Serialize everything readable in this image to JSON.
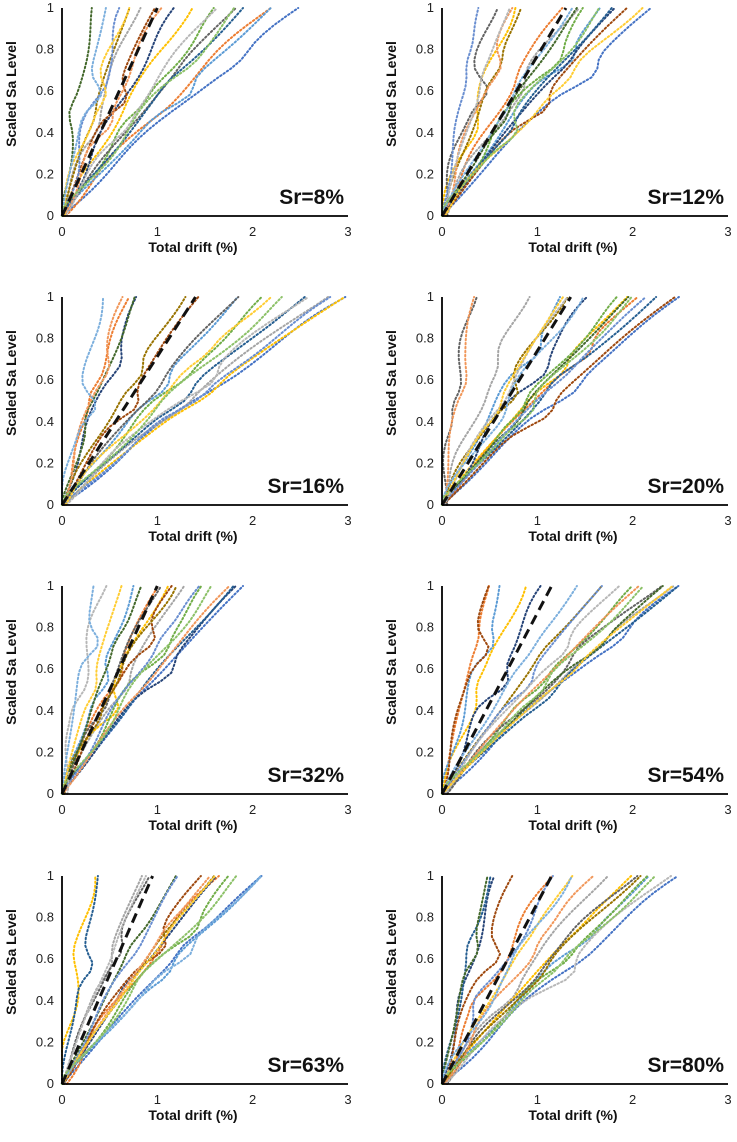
{
  "chart_data": [
    {
      "type": "line",
      "panel_label": "Sr=8%",
      "xlabel": "Total drift (%)",
      "ylabel": "Scaled Sa Level",
      "xlim": [
        0,
        3
      ],
      "ylim": [
        0,
        1
      ],
      "xticks": [
        "0",
        "1",
        "2",
        "3"
      ],
      "yticks": [
        "0",
        "0.2",
        "0.4",
        "0.6",
        "0.8",
        "1"
      ],
      "grid": false,
      "mean_series": {
        "name": "median",
        "style": "dashed",
        "x": [
          0,
          1.0
        ],
        "y": [
          0,
          1
        ]
      },
      "series_count": 18,
      "max_drift": 2.5
    },
    {
      "type": "line",
      "panel_label": "Sr=12%",
      "xlabel": "Total drift (%)",
      "ylabel": "Scaled Sa Level",
      "xlim": [
        0,
        3
      ],
      "ylim": [
        0,
        1
      ],
      "xticks": [
        "0",
        "1",
        "2",
        "3"
      ],
      "yticks": [
        "0",
        "0.2",
        "0.4",
        "0.6",
        "0.8",
        "1"
      ],
      "grid": false,
      "mean_series": {
        "name": "median",
        "style": "dashed",
        "x": [
          0,
          1.3
        ],
        "y": [
          0,
          1
        ]
      },
      "series_count": 18,
      "max_drift": 2.2
    },
    {
      "type": "line",
      "panel_label": "Sr=16%",
      "xlabel": "Total drift (%)",
      "ylabel": "Scaled Sa Level",
      "xlim": [
        0,
        3
      ],
      "ylim": [
        0,
        1
      ],
      "xticks": [
        "0",
        "1",
        "2",
        "3"
      ],
      "yticks": [
        "0",
        "0.2",
        "0.4",
        "0.6",
        "0.8",
        "1"
      ],
      "grid": false,
      "mean_series": {
        "name": "median",
        "style": "dashed",
        "x": [
          0,
          1.4
        ],
        "y": [
          0,
          1
        ]
      },
      "series_count": 18,
      "max_drift": 3.0
    },
    {
      "type": "line",
      "panel_label": "Sr=20%",
      "xlabel": "Total drift (%)",
      "ylabel": "Scaled Sa Level",
      "xlim": [
        0,
        3
      ],
      "ylim": [
        0,
        1
      ],
      "xticks": [
        "0",
        "1",
        "2",
        "3"
      ],
      "yticks": [
        "0",
        "0.2",
        "0.4",
        "0.6",
        "0.8",
        "1"
      ],
      "grid": false,
      "mean_series": {
        "name": "median",
        "style": "dashed",
        "x": [
          0,
          1.35
        ],
        "y": [
          0,
          1
        ]
      },
      "series_count": 18,
      "max_drift": 2.5
    },
    {
      "type": "line",
      "panel_label": "Sr=32%",
      "xlabel": "Total drift (%)",
      "ylabel": "Scaled Sa Level",
      "xlim": [
        0,
        3
      ],
      "ylim": [
        0,
        1
      ],
      "xticks": [
        "0",
        "1",
        "2",
        "3"
      ],
      "yticks": [
        "0",
        "0.2",
        "0.4",
        "0.6",
        "0.8",
        "1"
      ],
      "grid": false,
      "mean_series": {
        "name": "median",
        "style": "dashed",
        "x": [
          0,
          1.0
        ],
        "y": [
          0,
          1
        ]
      },
      "series_count": 18,
      "max_drift": 1.9
    },
    {
      "type": "line",
      "panel_label": "Sr=54%",
      "xlabel": "Total drift (%)",
      "ylabel": "Scaled Sa Level",
      "xlim": [
        0,
        3
      ],
      "ylim": [
        0,
        1
      ],
      "xticks": [
        "0",
        "1",
        "2",
        "3"
      ],
      "yticks": [
        "0",
        "0.2",
        "0.4",
        "0.6",
        "0.8",
        "1"
      ],
      "grid": false,
      "mean_series": {
        "name": "median",
        "style": "dashed",
        "x": [
          0,
          1.15
        ],
        "y": [
          0,
          1
        ]
      },
      "series_count": 18,
      "max_drift": 2.5
    },
    {
      "type": "line",
      "panel_label": "Sr=63%",
      "xlabel": "Total drift (%)",
      "ylabel": "Scaled Sa Level",
      "xlim": [
        0,
        3
      ],
      "ylim": [
        0,
        1
      ],
      "xticks": [
        "0",
        "1",
        "2",
        "3"
      ],
      "yticks": [
        "0",
        "0.2",
        "0.4",
        "0.6",
        "0.8",
        "1"
      ],
      "grid": false,
      "mean_series": {
        "name": "median",
        "style": "dashed",
        "x": [
          0,
          0.95
        ],
        "y": [
          0,
          1
        ]
      },
      "series_count": 18,
      "max_drift": 2.1
    },
    {
      "type": "line",
      "panel_label": "Sr=80%",
      "xlabel": "Total drift (%)",
      "ylabel": "Scaled Sa Level",
      "xlim": [
        0,
        3
      ],
      "ylim": [
        0,
        1
      ],
      "xticks": [
        "0",
        "1",
        "2",
        "3"
      ],
      "yticks": [
        "0",
        "0.2",
        "0.4",
        "0.6",
        "0.8",
        "1"
      ],
      "grid": false,
      "mean_series": {
        "name": "median",
        "style": "dashed",
        "x": [
          0,
          1.15
        ],
        "y": [
          0,
          1
        ]
      },
      "series_count": 18,
      "max_drift": 2.5
    }
  ],
  "colors": {
    "series": [
      "#4472c4",
      "#ed7d31",
      "#a5a5a5",
      "#ffc000",
      "#5b9bd5",
      "#70ad47",
      "#264478",
      "#9e480e",
      "#636363",
      "#997300",
      "#255e91",
      "#43682b",
      "#698ed0",
      "#f1975a",
      "#b7b7b7",
      "#ffcd33",
      "#7cafdd",
      "#8cc168"
    ],
    "mean": "#111111",
    "axis": "#000000"
  }
}
